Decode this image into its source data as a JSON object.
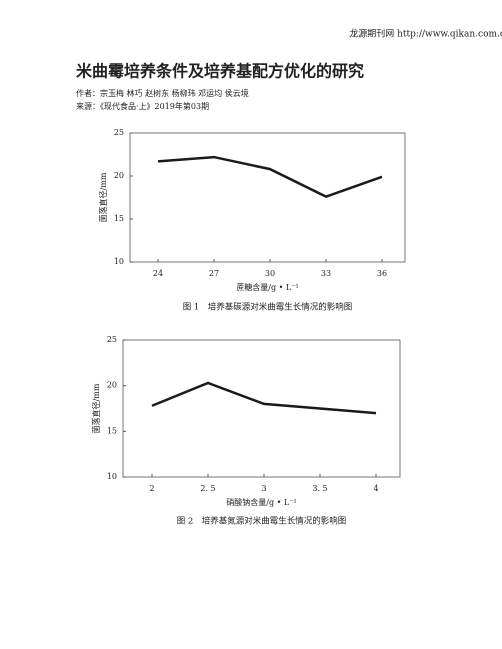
{
  "header": {
    "site": "龙源期刊网 http://www.qikan.com.cn",
    "title": "米曲霉培养条件及培养基配方优化的研究",
    "authors": "作者：宗玉梅 林巧 赵树东 杨柳玮 邓运均 侯云境",
    "source": "来源：《现代食品·上》2019年第03期"
  },
  "chart_data": [
    {
      "type": "line",
      "caption": "图 1　培养基碳源对米曲霉生长情况的影响图",
      "x_label": "蔗糖含量/g • L⁻¹",
      "y_label": "菌落直径/mm",
      "categories": [
        "24",
        "27",
        "30",
        "33",
        "36"
      ],
      "values": [
        21.7,
        22.2,
        20.8,
        17.6,
        19.9
      ],
      "color": "#1a1a1a",
      "ylim": [
        10,
        25
      ],
      "yticks": [
        10,
        15,
        20,
        25
      ]
    },
    {
      "type": "line",
      "caption": "图 2　培养基氮源对米曲霉生长情况的影响图",
      "x_label": "硝酸钠含量/g • L⁻¹",
      "y_label": "菌落直径/mm",
      "categories": [
        "2",
        "2. 5",
        "3",
        "3. 5",
        "4"
      ],
      "values": [
        17.8,
        20.3,
        18.0,
        17.5,
        17.0
      ],
      "color": "#1a1a1a",
      "ylim": [
        10,
        25
      ],
      "yticks": [
        10,
        15,
        20,
        25
      ]
    }
  ]
}
